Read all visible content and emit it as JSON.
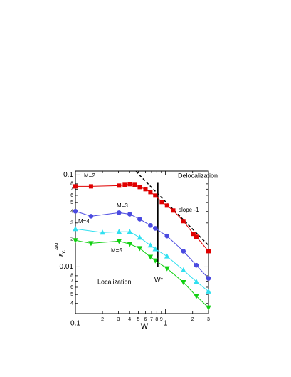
{
  "chart_data": {
    "type": "line",
    "xlabel": "W",
    "ylabel": {
      "symbol": "ε",
      "sub": "c",
      "sup": "AM"
    },
    "xscale": "log",
    "yscale": "log",
    "xlim": [
      0.1,
      3
    ],
    "ylim": [
      0.0031,
      0.11
    ],
    "xticks": [
      0.1,
      {
        "value": 0.2,
        "label": "2"
      },
      {
        "value": 0.3,
        "label": "3"
      },
      {
        "value": 0.4,
        "label": "4"
      },
      {
        "value": 0.5,
        "label": "5"
      },
      {
        "value": 0.6,
        "label": "6"
      },
      {
        "value": 0.7,
        "label": "7"
      },
      {
        "value": 0.8,
        "label": "8"
      },
      {
        "value": 0.9,
        "label": "9"
      },
      1,
      2,
      3
    ],
    "yticks": [
      {
        "value": 0.004,
        "label": "4"
      },
      {
        "value": 0.005,
        "label": "5"
      },
      {
        "value": 0.006,
        "label": "6"
      },
      {
        "value": 0.007,
        "label": "7"
      },
      {
        "value": 0.008,
        "label": "8"
      },
      0.01,
      {
        "value": 0.02,
        "label": "2"
      },
      {
        "value": 0.03,
        "label": "3"
      },
      {
        "value": 0.04,
        "label": "4"
      },
      {
        "value": 0.05,
        "label": "5"
      },
      {
        "value": 0.06,
        "label": "6"
      },
      {
        "value": 0.07,
        "label": "7"
      },
      {
        "value": 0.08,
        "label": "8"
      },
      0.1
    ],
    "series": [
      {
        "name": "M=2",
        "color": "#e00000",
        "marker": "square",
        "x": [
          0.1,
          0.149,
          0.305,
          0.353,
          0.401,
          0.455,
          0.518,
          0.6,
          0.68,
          0.77,
          0.91,
          1.04,
          1.22,
          1.58,
          2.04,
          2.2,
          3
        ],
        "values": [
          0.0751,
          0.0751,
          0.0765,
          0.0779,
          0.0793,
          0.0779,
          0.0738,
          0.07,
          0.0651,
          0.0596,
          0.0508,
          0.0464,
          0.041,
          0.0314,
          0.0228,
          0.0212,
          0.0148
        ]
      },
      {
        "name": "M=3",
        "color": "#4a4ae0",
        "marker": "circle",
        "x": [
          0.1,
          0.149,
          0.305,
          0.401,
          0.518,
          0.68,
          0.77,
          1.04,
          1.58,
          2.2,
          3
        ],
        "values": [
          0.0403,
          0.0355,
          0.0388,
          0.0374,
          0.033,
          0.0282,
          0.0262,
          0.0216,
          0.0148,
          0.0104,
          0.0075
        ]
      },
      {
        "name": "M=4",
        "color": "#30e0f0",
        "marker": "triangle",
        "x": [
          0.1,
          0.2,
          0.305,
          0.401,
          0.518,
          0.68,
          0.77,
          1.04,
          1.58,
          2.2,
          3
        ],
        "values": [
          0.0258,
          0.0236,
          0.024,
          0.024,
          0.0208,
          0.0171,
          0.0156,
          0.013,
          0.0092,
          0.0069,
          0.0054
        ]
      },
      {
        "name": "M=5",
        "color": "#10d010",
        "marker": "triangle-down",
        "x": [
          0.1,
          0.149,
          0.305,
          0.401,
          0.518,
          0.68,
          0.77,
          1.04,
          1.58,
          2.2,
          3
        ],
        "values": [
          0.0194,
          0.018,
          0.019,
          0.0177,
          0.0159,
          0.0128,
          0.0117,
          0.0096,
          0.0068,
          0.0048,
          0.0036
        ]
      }
    ],
    "slope_line": {
      "label": "slope -1",
      "x": [
        0.47,
        3
      ],
      "y": [
        0.109,
        0.0171
      ]
    },
    "critical_line": {
      "label": "W*",
      "x": 0.82,
      "y": [
        0.082,
        0.01
      ]
    },
    "annotations": [
      "Delocalization",
      "Localization"
    ]
  }
}
